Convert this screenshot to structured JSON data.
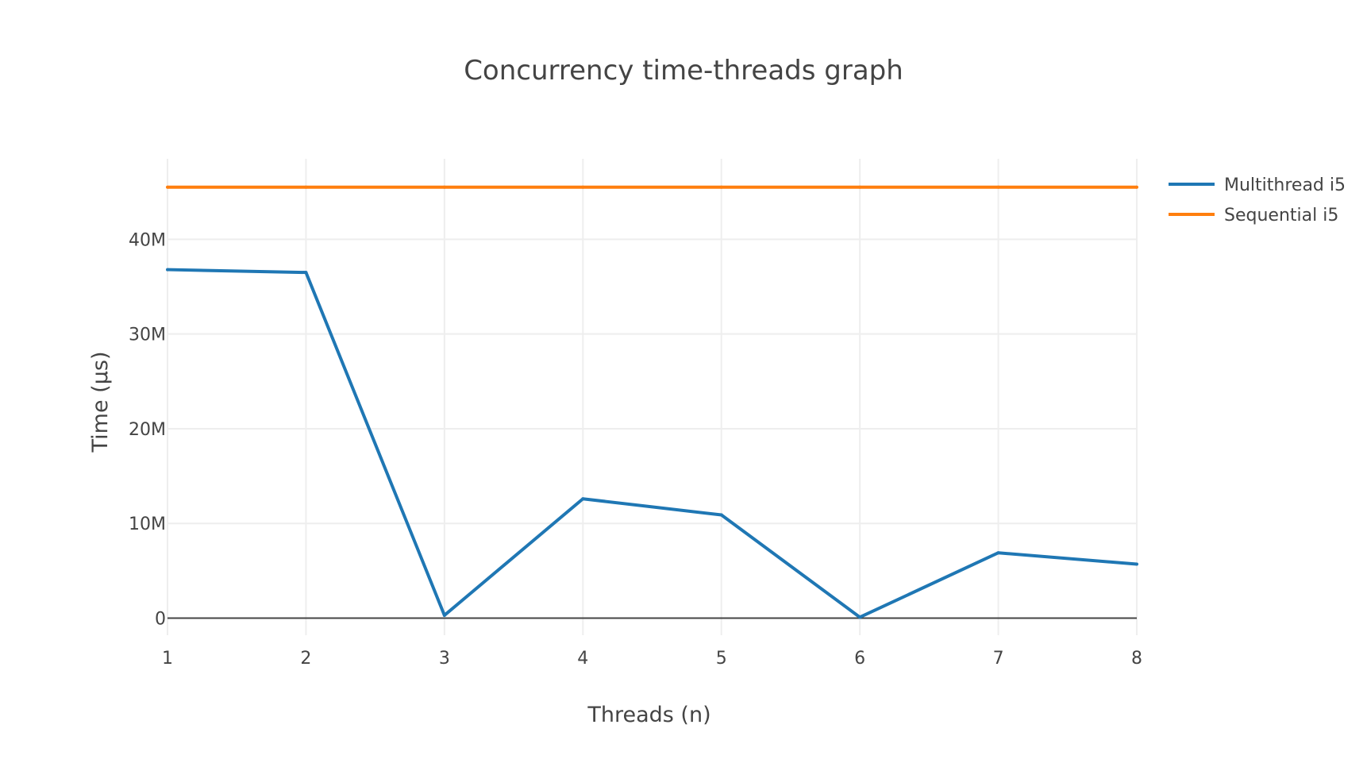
{
  "chart_data": {
    "type": "line",
    "title": "Concurrency time-threads graph",
    "xlabel": "Threads (n)",
    "ylabel": "Time (µs)",
    "x": [
      1,
      2,
      3,
      4,
      5,
      6,
      7,
      8
    ],
    "x_ticks": [
      "1",
      "2",
      "3",
      "4",
      "5",
      "6",
      "7",
      "8"
    ],
    "xlim": [
      1,
      8
    ],
    "y_ticks": [
      0,
      10000000,
      20000000,
      30000000,
      40000000
    ],
    "y_tick_labels": [
      "0",
      "10M",
      "20M",
      "30M",
      "40M"
    ],
    "ylim": [
      -1800000,
      48500000
    ],
    "grid": true,
    "legend": "top-right",
    "series": [
      {
        "name": "Multithread i5",
        "color": "#1f77b4",
        "values": [
          36800000,
          36500000,
          300000,
          12600000,
          10900000,
          100000,
          6900000,
          5700000
        ]
      },
      {
        "name": "Sequential i5",
        "color": "#ff7f0e",
        "values": [
          45500000,
          45500000,
          45500000,
          45500000,
          45500000,
          45500000,
          45500000,
          45500000
        ]
      }
    ]
  }
}
